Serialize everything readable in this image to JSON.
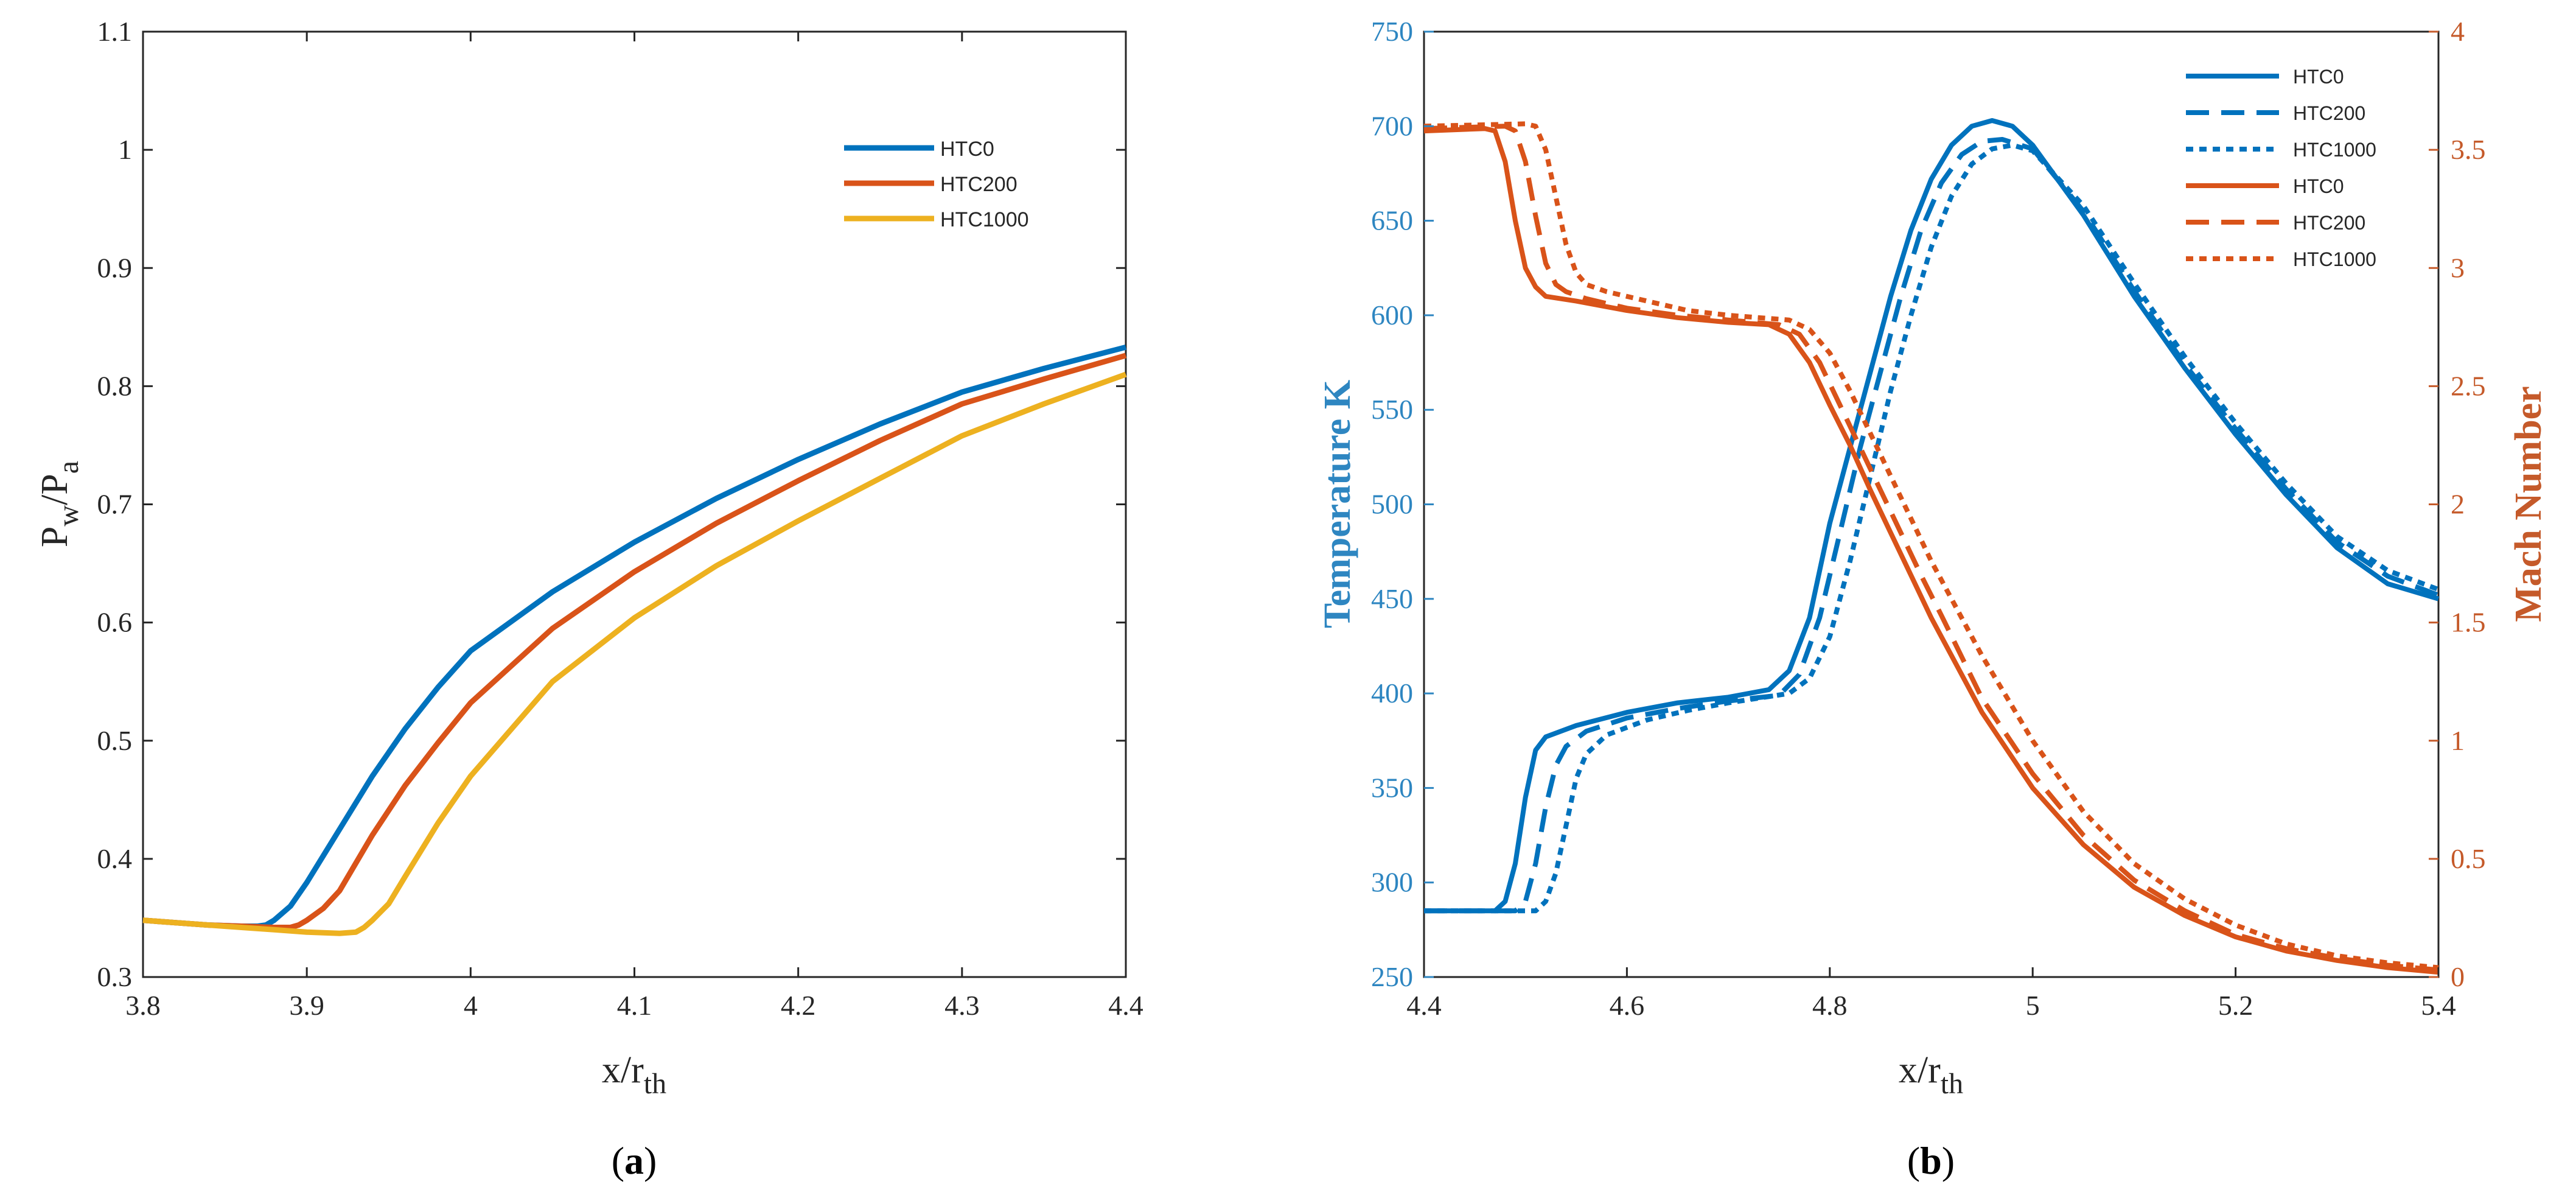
{
  "chart_data": [
    {
      "id": "a",
      "type": "line",
      "caption": "a",
      "xlabel": "x/r",
      "xlabel_sub": "th",
      "ylabel_base1": "P",
      "ylabel_sub1": "w",
      "ylabel_base2": "/P",
      "ylabel_sub2": "a",
      "xlim": [
        3.8,
        4.4
      ],
      "ylim": [
        0.3,
        1.1
      ],
      "xticks": [
        "3.8",
        "3.9",
        "4",
        "4.1",
        "4.2",
        "4.3",
        "4.4"
      ],
      "yticks": [
        "0.3",
        "0.4",
        "0.5",
        "0.6",
        "0.7",
        "0.8",
        "0.9",
        "1",
        "1.1"
      ],
      "legend_position": "upper-right",
      "series": [
        {
          "name": "HTC0",
          "color": "#0072BD",
          "x": [
            3.8,
            3.82,
            3.84,
            3.86,
            3.87,
            3.875,
            3.88,
            3.89,
            3.9,
            3.92,
            3.94,
            3.96,
            3.98,
            4.0,
            4.05,
            4.1,
            4.15,
            4.2,
            4.25,
            4.3,
            4.35,
            4.4
          ],
          "y": [
            0.348,
            0.346,
            0.344,
            0.343,
            0.343,
            0.344,
            0.348,
            0.36,
            0.38,
            0.425,
            0.47,
            0.51,
            0.545,
            0.576,
            0.626,
            0.668,
            0.705,
            0.738,
            0.768,
            0.795,
            0.815,
            0.833
          ]
        },
        {
          "name": "HTC200",
          "color": "#D95319",
          "x": [
            3.8,
            3.82,
            3.84,
            3.86,
            3.88,
            3.89,
            3.895,
            3.9,
            3.91,
            3.92,
            3.94,
            3.96,
            3.98,
            4.0,
            4.05,
            4.1,
            4.15,
            4.2,
            4.25,
            4.3,
            4.35,
            4.4
          ],
          "y": [
            0.348,
            0.346,
            0.344,
            0.343,
            0.342,
            0.342,
            0.344,
            0.348,
            0.358,
            0.373,
            0.42,
            0.462,
            0.498,
            0.532,
            0.595,
            0.643,
            0.684,
            0.72,
            0.754,
            0.785,
            0.806,
            0.826
          ]
        },
        {
          "name": "HTC1000",
          "color": "#EDB120",
          "x": [
            3.8,
            3.82,
            3.84,
            3.86,
            3.88,
            3.9,
            3.92,
            3.93,
            3.935,
            3.94,
            3.95,
            3.96,
            3.98,
            4.0,
            4.05,
            4.1,
            4.15,
            4.2,
            4.25,
            4.3,
            4.35,
            4.4
          ],
          "y": [
            0.348,
            0.346,
            0.344,
            0.342,
            0.34,
            0.338,
            0.337,
            0.338,
            0.342,
            0.348,
            0.362,
            0.385,
            0.43,
            0.47,
            0.55,
            0.604,
            0.648,
            0.686,
            0.722,
            0.758,
            0.785,
            0.81
          ]
        }
      ]
    },
    {
      "id": "b",
      "type": "line",
      "caption": "b",
      "xlabel": "x/r",
      "xlabel_sub": "th",
      "ylabel_left": "Temperature K",
      "ylabel_right": "Mach Number",
      "left_color": "#2E86C1",
      "right_color": "#C55A2A",
      "xlim": [
        4.4,
        5.4
      ],
      "ylim_left": [
        250,
        750
      ],
      "ylim_right": [
        0,
        4
      ],
      "xticks": [
        "4.4",
        "4.6",
        "4.8",
        "5",
        "5.2",
        "5.4"
      ],
      "yticks_left": [
        "250",
        "300",
        "350",
        "400",
        "450",
        "500",
        "550",
        "600",
        "650",
        "700",
        "750"
      ],
      "yticks_right": [
        "0",
        "0.5",
        "1",
        "1.5",
        "2",
        "2.5",
        "3",
        "3.5",
        "4"
      ],
      "legend_position": "upper-right",
      "series": [
        {
          "name": "HTC0",
          "axis": "left",
          "style": "solid",
          "color": "#0072BD",
          "x": [
            4.4,
            4.47,
            4.48,
            4.49,
            4.5,
            4.51,
            4.52,
            4.55,
            4.6,
            4.65,
            4.7,
            4.74,
            4.76,
            4.78,
            4.8,
            4.82,
            4.84,
            4.86,
            4.88,
            4.9,
            4.92,
            4.94,
            4.96,
            4.98,
            5.0,
            5.05,
            5.1,
            5.15,
            5.2,
            5.25,
            5.3,
            5.35,
            5.4
          ],
          "y": [
            285,
            285,
            290,
            310,
            345,
            370,
            377,
            383,
            390,
            395,
            398,
            402,
            412,
            440,
            490,
            530,
            570,
            610,
            645,
            672,
            690,
            700,
            703,
            700,
            690,
            653,
            610,
            572,
            537,
            505,
            477,
            458,
            450
          ]
        },
        {
          "name": "HTC200",
          "axis": "left",
          "style": "dashed",
          "color": "#0072BD",
          "x": [
            4.4,
            4.48,
            4.49,
            4.5,
            4.51,
            4.52,
            4.53,
            4.54,
            4.56,
            4.6,
            4.65,
            4.7,
            4.75,
            4.77,
            4.79,
            4.81,
            4.83,
            4.85,
            4.87,
            4.89,
            4.91,
            4.93,
            4.95,
            4.97,
            5.0,
            5.05,
            5.1,
            5.15,
            5.2,
            5.25,
            5.3,
            5.35,
            5.4
          ],
          "y": [
            285,
            285,
            285,
            290,
            310,
            340,
            362,
            372,
            380,
            387,
            392,
            396,
            399,
            410,
            440,
            485,
            530,
            570,
            610,
            645,
            670,
            685,
            692,
            693,
            688,
            655,
            613,
            574,
            540,
            508,
            480,
            462,
            452
          ]
        },
        {
          "name": "HTC1000",
          "axis": "left",
          "style": "dotted",
          "color": "#0072BD",
          "x": [
            4.4,
            4.5,
            4.51,
            4.52,
            4.53,
            4.54,
            4.55,
            4.56,
            4.58,
            4.62,
            4.66,
            4.7,
            4.76,
            4.78,
            4.8,
            4.82,
            4.84,
            4.86,
            4.88,
            4.9,
            4.92,
            4.94,
            4.96,
            4.98,
            5.0,
            5.05,
            5.1,
            5.15,
            5.2,
            5.25,
            5.3,
            5.35,
            5.4
          ],
          "y": [
            285,
            285,
            285,
            290,
            305,
            330,
            355,
            368,
            378,
            386,
            391,
            395,
            400,
            408,
            430,
            470,
            515,
            560,
            600,
            636,
            663,
            680,
            688,
            690,
            687,
            658,
            617,
            578,
            543,
            511,
            483,
            465,
            455
          ]
        },
        {
          "name": "HTC0",
          "axis": "right",
          "style": "solid",
          "color": "#D95319",
          "x": [
            4.4,
            4.46,
            4.47,
            4.48,
            4.49,
            4.5,
            4.51,
            4.52,
            4.55,
            4.6,
            4.65,
            4.7,
            4.74,
            4.76,
            4.78,
            4.8,
            4.82,
            4.84,
            4.86,
            4.88,
            4.9,
            4.95,
            5.0,
            5.05,
            5.1,
            5.15,
            5.2,
            5.25,
            5.3,
            5.35,
            5.4
          ],
          "y": [
            3.58,
            3.59,
            3.58,
            3.45,
            3.2,
            3.0,
            2.92,
            2.88,
            2.86,
            2.82,
            2.79,
            2.77,
            2.76,
            2.72,
            2.6,
            2.42,
            2.25,
            2.06,
            1.88,
            1.7,
            1.52,
            1.12,
            0.8,
            0.56,
            0.38,
            0.26,
            0.17,
            0.11,
            0.07,
            0.04,
            0.02
          ]
        },
        {
          "name": "HTC200",
          "axis": "right",
          "style": "dashed",
          "color": "#D95319",
          "x": [
            4.4,
            4.48,
            4.49,
            4.5,
            4.51,
            4.52,
            4.53,
            4.54,
            4.56,
            4.6,
            4.65,
            4.7,
            4.75,
            4.77,
            4.79,
            4.81,
            4.83,
            4.85,
            4.87,
            4.89,
            4.91,
            4.95,
            5.0,
            5.05,
            5.1,
            5.15,
            5.2,
            5.25,
            5.3,
            5.35,
            5.4
          ],
          "y": [
            3.59,
            3.6,
            3.58,
            3.45,
            3.22,
            3.02,
            2.93,
            2.9,
            2.87,
            2.83,
            2.8,
            2.78,
            2.76,
            2.72,
            2.6,
            2.42,
            2.24,
            2.06,
            1.88,
            1.7,
            1.53,
            1.18,
            0.86,
            0.6,
            0.41,
            0.28,
            0.18,
            0.12,
            0.08,
            0.05,
            0.03
          ]
        },
        {
          "name": "HTC1000",
          "axis": "right",
          "style": "dotted",
          "color": "#D95319",
          "x": [
            4.4,
            4.5,
            4.51,
            4.52,
            4.53,
            4.54,
            4.55,
            4.56,
            4.58,
            4.62,
            4.66,
            4.7,
            4.76,
            4.78,
            4.8,
            4.82,
            4.84,
            4.86,
            4.88,
            4.9,
            4.92,
            4.95,
            5.0,
            5.05,
            5.1,
            5.15,
            5.2,
            5.25,
            5.3,
            5.35,
            5.4
          ],
          "y": [
            3.6,
            3.61,
            3.6,
            3.5,
            3.3,
            3.1,
            2.98,
            2.93,
            2.9,
            2.86,
            2.82,
            2.8,
            2.78,
            2.74,
            2.64,
            2.48,
            2.3,
            2.12,
            1.94,
            1.76,
            1.6,
            1.36,
            1.0,
            0.7,
            0.48,
            0.33,
            0.22,
            0.14,
            0.09,
            0.06,
            0.04
          ]
        }
      ]
    }
  ]
}
